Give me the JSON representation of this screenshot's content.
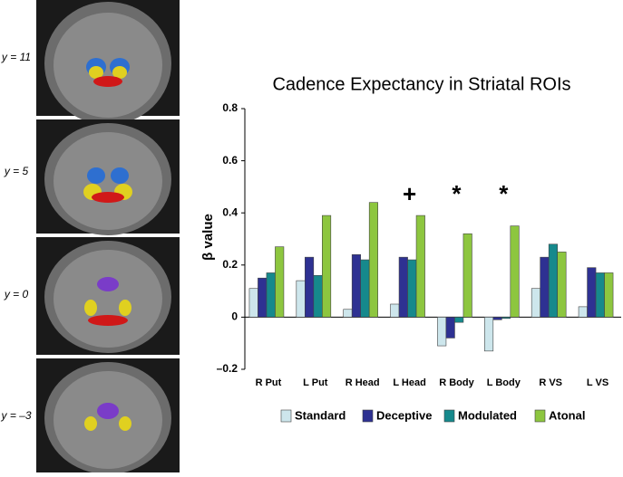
{
  "brain_slices": {
    "labels": [
      "y = 11",
      "y = 5",
      "y = 0",
      "y = –3"
    ]
  },
  "chart_data": {
    "type": "bar",
    "title": "Cadence Expectancy in Striatal ROIs",
    "y_label": "β value",
    "categories": [
      "R Put",
      "L Put",
      "R Head",
      "L Head",
      "R Body",
      "L Body",
      "R VS",
      "L VS"
    ],
    "series": [
      {
        "name": "Standard",
        "color": "#cde6ec",
        "values": [
          0.11,
          0.14,
          0.03,
          0.05,
          -0.11,
          -0.13,
          0.11,
          0.04
        ]
      },
      {
        "name": "Deceptive",
        "color": "#2e3192",
        "values": [
          0.15,
          0.23,
          0.24,
          0.23,
          -0.08,
          -0.01,
          0.23,
          0.19
        ]
      },
      {
        "name": "Modulated",
        "color": "#16898c",
        "values": [
          0.17,
          0.16,
          0.22,
          0.22,
          -0.02,
          -0.005,
          0.28,
          0.17
        ]
      },
      {
        "name": "Atonal",
        "color": "#8dc63f",
        "values": [
          0.27,
          0.39,
          0.44,
          0.39,
          0.32,
          0.35,
          0.25,
          0.17
        ]
      }
    ],
    "markers": [
      null,
      null,
      null,
      "+",
      "*",
      "*",
      null,
      null
    ],
    "ylim": [
      -0.2,
      0.8
    ],
    "yticks": [
      {
        "value": -0.2,
        "label": "–0.2"
      },
      0,
      0.2,
      0.4,
      0.6,
      0.8
    ],
    "legend": "bottom"
  }
}
